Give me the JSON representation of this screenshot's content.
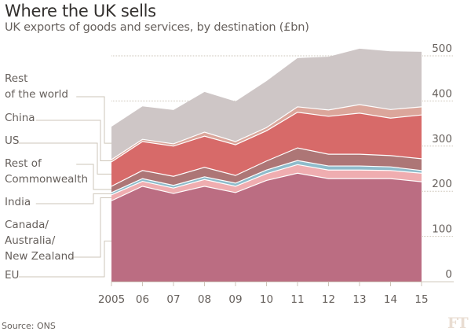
{
  "title": "Where the UK sells",
  "subtitle": "UK exports of goods and services, by destination (£bn)",
  "source": "Source: ONS",
  "logo": "FT",
  "chart_data": {
    "type": "area",
    "stacked": true,
    "title": "Where the UK sells",
    "subtitle": "UK exports of goods and services, by destination (£bn)",
    "xlabel": "",
    "ylabel": "",
    "x": [
      2005,
      2006,
      2007,
      2008,
      2009,
      2010,
      2011,
      2012,
      2013,
      2014,
      2015
    ],
    "x_tick_labels": [
      "2005",
      "06",
      "07",
      "08",
      "09",
      "10",
      "11",
      "12",
      "13",
      "14",
      "15"
    ],
    "ylim": [
      0,
      500
    ],
    "y_ticks": [
      0,
      100,
      200,
      300,
      400,
      500
    ],
    "y_tick_labels": [
      "0",
      "100",
      "200",
      "300",
      "400",
      "500"
    ],
    "y_axis_side": "right",
    "grid": true,
    "legend": "left, leader lines",
    "series": [
      {
        "name": "EU",
        "label_lines": [
          "EU"
        ],
        "color": "#bb6d82",
        "values": [
          179,
          211,
          195,
          211,
          197,
          224,
          240,
          228,
          228,
          228,
          221
        ]
      },
      {
        "name": "Canada/Australia/New Zealand",
        "label_lines": [
          "Canada/",
          "Australia/",
          "New Zealand"
        ],
        "color": "#efadb0",
        "values": [
          13,
          11,
          12,
          15,
          14,
          15,
          19,
          19,
          19,
          18,
          19
        ]
      },
      {
        "name": "India",
        "label_lines": [
          "India"
        ],
        "color": "#8fbccb",
        "values": [
          5,
          6,
          6,
          6,
          7,
          8,
          9,
          9,
          9,
          8,
          6
        ]
      },
      {
        "name": "Rest of Commonwealth",
        "label_lines": [
          "Rest of",
          "Commonwealth"
        ],
        "color": "#ad7676",
        "values": [
          14,
          18,
          20,
          21,
          17,
          20,
          28,
          26,
          26,
          25,
          26
        ]
      },
      {
        "name": "US",
        "label_lines": [
          "US"
        ],
        "color": "#d76a69",
        "values": [
          54,
          64,
          67,
          69,
          68,
          67,
          79,
          84,
          91,
          83,
          97
        ]
      },
      {
        "name": "China",
        "label_lines": [
          "China"
        ],
        "color": "#dba69b",
        "values": [
          5,
          5,
          5,
          9,
          7,
          7,
          12,
          14,
          19,
          19,
          18
        ]
      },
      {
        "name": "Rest of the world",
        "label_lines": [
          "Rest",
          "of the world"
        ],
        "color": "#cec6c6",
        "values": [
          73,
          73,
          75,
          89,
          89,
          103,
          108,
          118,
          124,
          129,
          122
        ]
      }
    ]
  }
}
